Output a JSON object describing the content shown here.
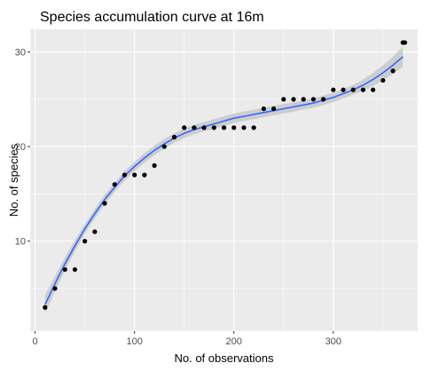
{
  "chart_data": {
    "type": "scatter",
    "title": "Species accumulation curve at 16m",
    "xlabel": "No. of observations",
    "ylabel": "No. of species",
    "xlim": [
      -5,
      385
    ],
    "ylim": [
      0.5,
      32.4
    ],
    "x_ticks": [
      0,
      100,
      200,
      300
    ],
    "y_ticks": [
      10,
      20,
      30
    ],
    "x_tick_labels": [
      "0",
      "100",
      "200",
      "300"
    ],
    "y_tick_labels": [
      "10",
      "20",
      "30"
    ],
    "grid": true,
    "panel_background": "#ebebeb",
    "grid_color": "#ffffff",
    "series": [
      {
        "kind": "points",
        "color": "#000000",
        "x": [
          10,
          20,
          30,
          40,
          50,
          60,
          70,
          80,
          90,
          100,
          110,
          120,
          130,
          140,
          150,
          160,
          170,
          180,
          190,
          200,
          210,
          220,
          230,
          240,
          250,
          260,
          270,
          280,
          290,
          300,
          310,
          320,
          330,
          340,
          350,
          360,
          370,
          372
        ],
        "y": [
          3,
          5,
          7,
          7,
          10,
          11,
          14,
          16,
          17,
          17,
          17,
          18,
          20,
          21,
          22,
          22,
          22,
          22,
          22,
          22,
          22,
          22,
          24,
          24,
          25,
          25,
          25,
          25,
          25,
          26,
          26,
          26,
          26,
          26,
          27,
          28,
          31,
          31
        ]
      },
      {
        "kind": "smooth",
        "color": "#3366ff",
        "band_color": "#c8c8c8",
        "x": [
          10,
          20,
          30,
          40,
          50,
          60,
          70,
          80,
          90,
          100,
          110,
          120,
          130,
          140,
          150,
          160,
          170,
          180,
          190,
          200,
          210,
          220,
          230,
          240,
          250,
          260,
          270,
          280,
          290,
          300,
          310,
          320,
          330,
          340,
          350,
          360,
          370
        ],
        "y": [
          3.3,
          5.5,
          7.6,
          9.5,
          11.3,
          12.9,
          14.4,
          15.7,
          16.9,
          17.9,
          18.8,
          19.6,
          20.3,
          20.9,
          21.4,
          21.8,
          22.1,
          22.4,
          22.7,
          23.0,
          23.2,
          23.4,
          23.6,
          23.8,
          24.0,
          24.2,
          24.4,
          24.6,
          24.9,
          25.2,
          25.6,
          26.0,
          26.5,
          27.1,
          27.8,
          28.6,
          29.5
        ],
        "lower": [
          2.3,
          4.7,
          6.9,
          8.9,
          10.8,
          12.4,
          13.9,
          15.2,
          16.4,
          17.4,
          18.3,
          19.1,
          19.8,
          20.4,
          20.9,
          21.3,
          21.6,
          21.9,
          22.2,
          22.5,
          22.7,
          22.9,
          23.1,
          23.3,
          23.5,
          23.7,
          23.9,
          24.1,
          24.4,
          24.7,
          25.1,
          25.5,
          25.9,
          26.4,
          27.0,
          27.7,
          28.4
        ],
        "upper": [
          4.3,
          6.3,
          8.3,
          10.1,
          11.8,
          13.4,
          14.9,
          16.2,
          17.4,
          18.4,
          19.3,
          20.1,
          20.8,
          21.4,
          21.9,
          22.3,
          22.6,
          22.9,
          23.2,
          23.5,
          23.7,
          23.9,
          24.1,
          24.3,
          24.5,
          24.7,
          24.9,
          25.1,
          25.4,
          25.7,
          26.1,
          26.5,
          27.1,
          27.8,
          28.6,
          29.5,
          30.6
        ]
      }
    ]
  }
}
